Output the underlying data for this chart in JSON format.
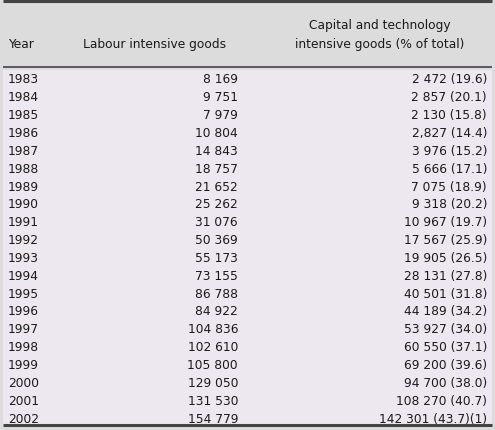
{
  "col1_header": "Year",
  "col2_header": "Labour intensive goods",
  "col3_header_line1": "Capital and technology",
  "col3_header_line2": "intensive goods (% of total)",
  "rows": [
    [
      "1983",
      "8 169",
      "2 472 (19.6)"
    ],
    [
      "1984",
      "9 751",
      "2 857 (20.1)"
    ],
    [
      "1985",
      "7 979",
      "2 130 (15.8)"
    ],
    [
      "1986",
      "10 804",
      "2,827 (14.4)"
    ],
    [
      "1987",
      "14 843",
      "3 976 (15.2)"
    ],
    [
      "1988",
      "18 757",
      "5 666 (17.1)"
    ],
    [
      "1989",
      "21 652",
      "7 075 (18.9)"
    ],
    [
      "1990",
      "25 262",
      "9 318 (20.2)"
    ],
    [
      "1991",
      "31 076",
      "10 967 (19.7)"
    ],
    [
      "1992",
      "50 369",
      "17 567 (25.9)"
    ],
    [
      "1993",
      "55 173",
      "19 905 (26.5)"
    ],
    [
      "1994",
      "73 155",
      "28 131 (27.8)"
    ],
    [
      "1995",
      "86 788",
      "40 501 (31.8)"
    ],
    [
      "1996",
      "84 922",
      "44 189 (34.2)"
    ],
    [
      "1997",
      "104 836",
      "53 927 (34.0)"
    ],
    [
      "1998",
      "102 610",
      "60 550 (37.1)"
    ],
    [
      "1999",
      "105 800",
      "69 200 (39.6)"
    ],
    [
      "2000",
      "129 050",
      "94 700 (38.0)"
    ],
    [
      "2001",
      "131 530",
      "108 270 (40.7)"
    ],
    [
      "2002",
      "154 779",
      "142 301 (43.7)(1)"
    ]
  ],
  "body_bg_color": "#ede8f0",
  "header_bg_color": "#dcdcdc",
  "text_color": "#1a1a1a",
  "border_color": "#444444",
  "font_size": 8.8,
  "header_font_size": 8.8,
  "fig_width": 4.95,
  "fig_height": 4.31,
  "dpi": 100
}
